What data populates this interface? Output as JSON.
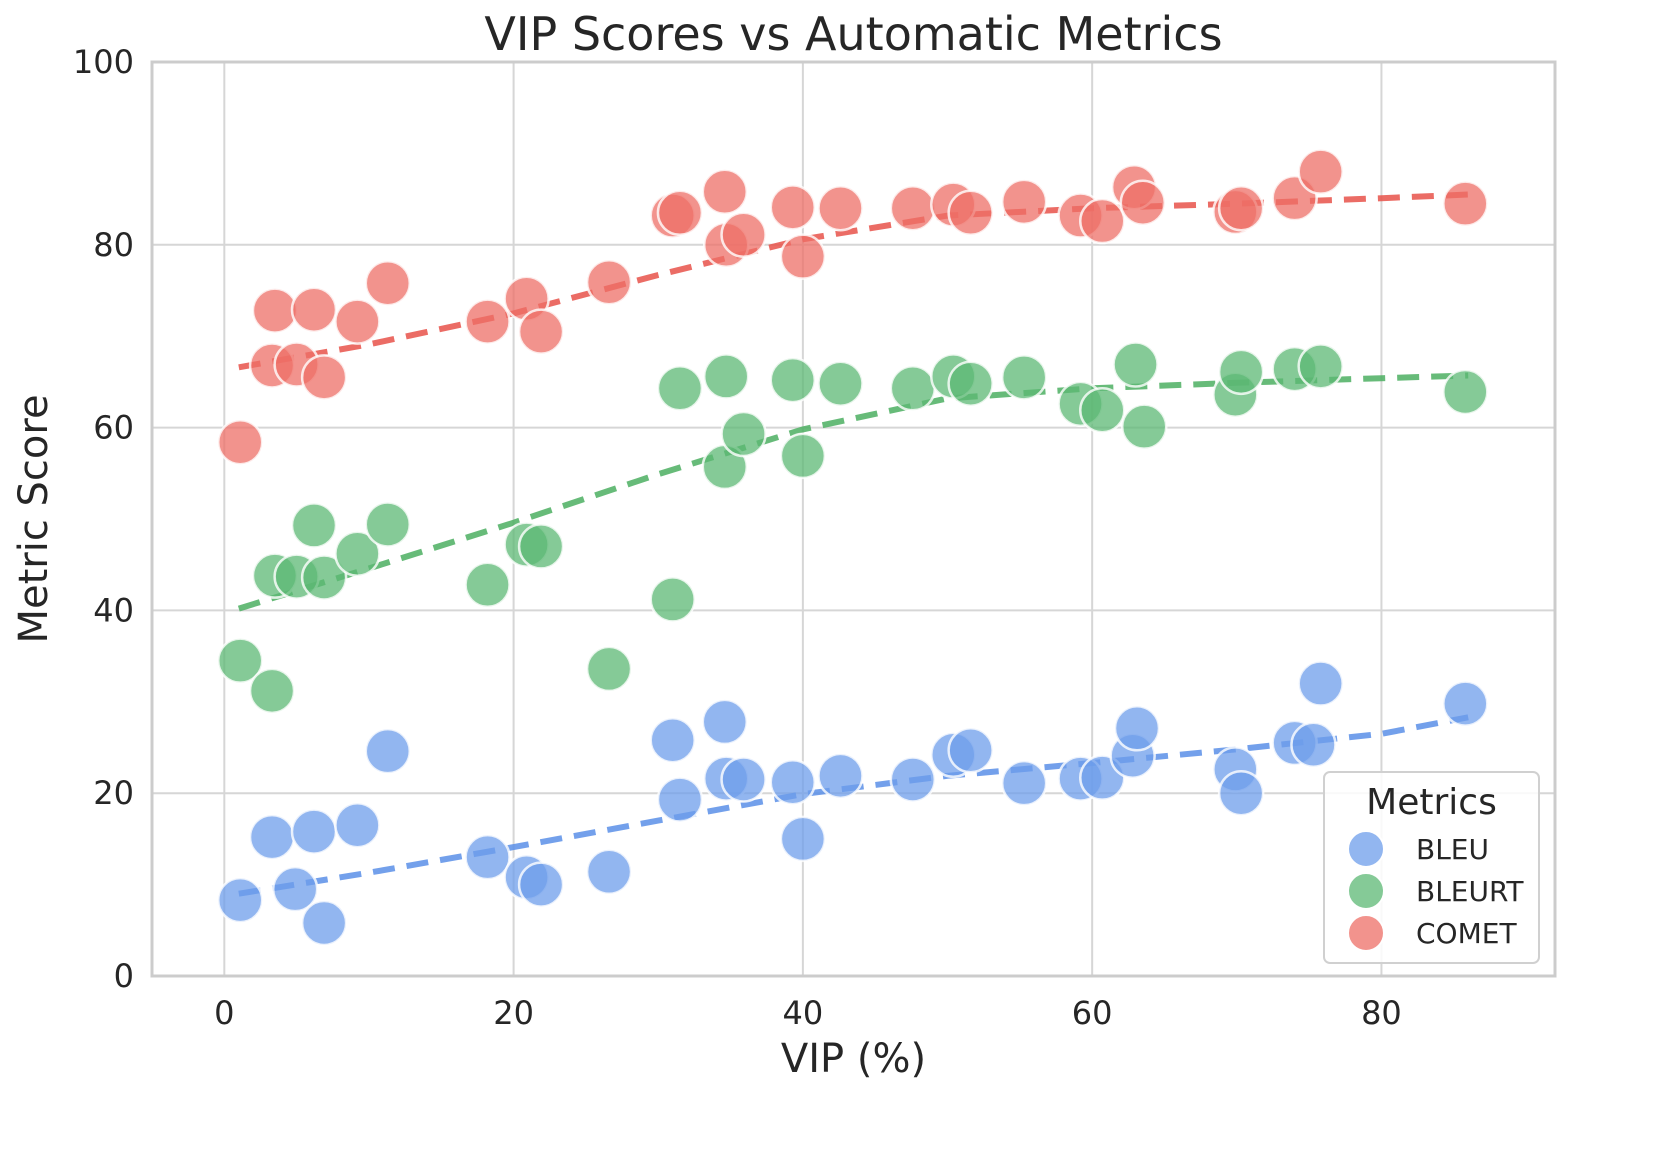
{
  "chart_data": {
    "type": "scatter",
    "title": "VIP Scores vs Automatic Metrics",
    "xlabel": "VIP (%)",
    "ylabel": "Metric Score",
    "xlim": [
      -5,
      92
    ],
    "ylim": [
      0,
      100
    ],
    "xticks": [
      0,
      20,
      40,
      60,
      80
    ],
    "yticks": [
      0,
      20,
      40,
      60,
      80,
      100
    ],
    "grid": true,
    "legend": {
      "title": "Metrics",
      "position": "lower-right"
    },
    "series": [
      {
        "name": "BLEU",
        "color": "#6d9eeb",
        "trend_color": "#5b8fe8",
        "x": [
          1.1,
          3.3,
          4.9,
          6.2,
          6.9,
          9.2,
          11.3,
          18.2,
          20.9,
          21.9,
          26.6,
          31.0,
          31.5,
          34.6,
          34.7,
          35.9,
          39.3,
          40.0,
          42.6,
          47.6,
          50.4,
          51.6,
          55.3,
          59.2,
          60.7,
          62.8,
          63.1,
          69.9,
          70.3,
          74.0,
          75.3,
          75.8,
          85.8
        ],
        "y": [
          8.3,
          15.2,
          9.5,
          15.8,
          5.8,
          16.5,
          24.6,
          13.0,
          10.8,
          10.0,
          11.4,
          25.8,
          19.3,
          27.8,
          21.6,
          21.5,
          21.2,
          15.0,
          21.9,
          21.5,
          24.2,
          24.7,
          21.1,
          21.6,
          21.7,
          24.1,
          27.1,
          22.6,
          20.0,
          25.5,
          25.3,
          32.0,
          29.8
        ],
        "trend_x": [
          1,
          10,
          20,
          30,
          40,
          50,
          60,
          70,
          80,
          86
        ],
        "trend_y": [
          9,
          11.3,
          14.1,
          17.0,
          19.9,
          21.9,
          23.3,
          24.8,
          26.5,
          28.3
        ]
      },
      {
        "name": "BLEURT",
        "color": "#5cb874",
        "trend_color": "#4caf62",
        "x": [
          1.1,
          3.3,
          3.5,
          5.0,
          6.2,
          6.9,
          9.2,
          11.3,
          18.2,
          20.9,
          21.9,
          26.6,
          31.0,
          31.5,
          34.6,
          34.7,
          35.9,
          39.3,
          40.0,
          42.6,
          47.6,
          50.4,
          51.6,
          55.3,
          59.2,
          60.7,
          63.0,
          63.6,
          69.9,
          70.3,
          74.0,
          75.8,
          85.8
        ],
        "y": [
          34.5,
          31.2,
          43.8,
          43.7,
          49.3,
          43.6,
          46.2,
          49.4,
          42.8,
          47.2,
          47.0,
          33.6,
          41.2,
          64.3,
          55.7,
          65.6,
          59.3,
          65.2,
          56.9,
          64.8,
          64.3,
          65.6,
          64.8,
          65.5,
          62.6,
          61.9,
          66.9,
          60.1,
          63.6,
          66.1,
          66.4,
          66.7,
          63.9
        ],
        "trend_x": [
          1,
          10,
          20,
          30,
          40,
          50,
          60,
          70,
          80,
          86
        ],
        "trend_y": [
          40.2,
          44.6,
          49.6,
          54.9,
          59.8,
          63.2,
          64.3,
          64.9,
          65.4,
          65.7
        ]
      },
      {
        "name": "COMET",
        "color": "#ee6f67",
        "trend_color": "#e8524a",
        "x": [
          1.1,
          3.3,
          3.5,
          5.0,
          6.2,
          6.9,
          9.2,
          11.3,
          18.2,
          20.9,
          21.9,
          26.6,
          31.0,
          31.5,
          34.6,
          34.7,
          35.9,
          39.3,
          40.0,
          42.6,
          47.6,
          50.4,
          51.6,
          55.3,
          59.2,
          60.7,
          62.9,
          63.5,
          69.9,
          70.3,
          74.0,
          75.8,
          85.8
        ],
        "y": [
          58.4,
          66.8,
          72.8,
          66.9,
          72.9,
          65.5,
          71.6,
          75.8,
          71.6,
          74.1,
          70.5,
          75.9,
          83.2,
          83.5,
          85.8,
          80.0,
          81.1,
          84.1,
          78.7,
          84.0,
          84.0,
          84.4,
          83.5,
          84.7,
          83.2,
          82.6,
          86.3,
          84.6,
          83.6,
          84.0,
          85.1,
          88.0,
          84.5
        ],
        "trend_x": [
          1,
          10,
          20,
          30,
          40,
          50,
          60,
          70,
          80,
          86
        ],
        "trend_y": [
          66.6,
          69.1,
          72.5,
          76.7,
          80.6,
          83.2,
          84.0,
          84.5,
          85.1,
          85.5
        ]
      }
    ]
  }
}
